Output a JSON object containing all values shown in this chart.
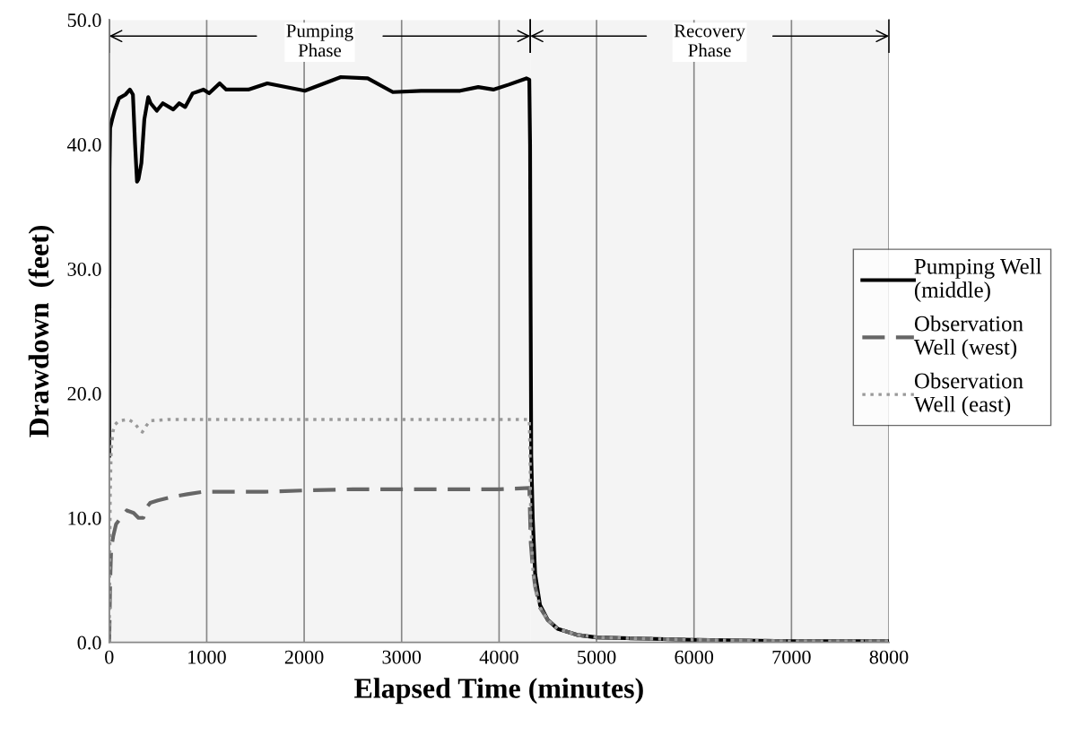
{
  "chart_data": {
    "type": "line",
    "xlabel": "Elapsed Time (minutes)",
    "ylabel": "Drawdown  (feet)",
    "xlim": [
      0,
      8000
    ],
    "ylim": [
      0,
      50
    ],
    "xticks": [
      0,
      1000,
      2000,
      3000,
      4000,
      5000,
      6000,
      7000,
      8000
    ],
    "yticks": [
      {
        "value": 0,
        "label": "0.0"
      },
      {
        "value": 10,
        "label": "10.0"
      },
      {
        "value": 20,
        "label": "20.0"
      },
      {
        "value": 30,
        "label": "30.0"
      },
      {
        "value": 40,
        "label": "40.0"
      },
      {
        "value": 50,
        "label": "50.0"
      }
    ],
    "grid": "x",
    "legend": "right",
    "bands": [
      {
        "axis": "x",
        "from": 0,
        "to": 4320,
        "label": "Pumping\nPhase",
        "color": "#f4f4f4"
      },
      {
        "axis": "x",
        "from": 4320,
        "to": 8000,
        "label": "Recovery\nPhase",
        "color": "#f4f4f4"
      }
    ],
    "series": [
      {
        "name": "Pumping Well\n(middle)",
        "color": "#000000",
        "line_style": "solid",
        "x": [
          0,
          3,
          9,
          30,
          55,
          100,
          166,
          212,
          243,
          265,
          285,
          300,
          330,
          360,
          400,
          425,
          488,
          550,
          657,
          718,
          779,
          856,
          967,
          1025,
          1133,
          1200,
          1427,
          1622,
          2007,
          2376,
          2652,
          2910,
          3200,
          3416,
          3600,
          3786,
          3941,
          4100,
          4280,
          4310,
          4318,
          4322,
          4330,
          4345,
          4370,
          4420,
          4500,
          4600,
          4800,
          5000,
          5500,
          6000,
          7000,
          8000
        ],
        "values": [
          15.0,
          38.0,
          41.3,
          42.0,
          42.7,
          43.7,
          44.0,
          44.4,
          44.0,
          40.0,
          37.0,
          37.2,
          38.5,
          42.0,
          43.8,
          43.3,
          42.7,
          43.3,
          42.8,
          43.3,
          43.0,
          44.1,
          44.4,
          44.1,
          44.9,
          44.4,
          44.4,
          44.9,
          44.3,
          45.4,
          45.3,
          44.2,
          44.3,
          44.3,
          44.3,
          44.6,
          44.4,
          44.8,
          45.3,
          45.2,
          40.0,
          30.0,
          15.0,
          10.0,
          5.5,
          3.0,
          1.8,
          1.1,
          0.6,
          0.4,
          0.3,
          0.2,
          0.1,
          0.1
        ]
      },
      {
        "name": "Observation\nWell (west)",
        "color": "#666666",
        "line_style": "dashed",
        "x": [
          0,
          10,
          20,
          40,
          70,
          120,
          180,
          250,
          300,
          350,
          380,
          420,
          500,
          650,
          800,
          967,
          1200,
          1600,
          2000,
          2500,
          3000,
          3500,
          4000,
          4310,
          4318,
          4325,
          4345,
          4370,
          4420,
          4500,
          4600,
          4800,
          5000,
          5500,
          6000,
          7000,
          8000
        ],
        "values": [
          0.0,
          5.0,
          7.5,
          8.5,
          9.5,
          10.0,
          10.6,
          10.4,
          10.0,
          10.0,
          10.8,
          11.2,
          11.4,
          11.7,
          11.9,
          12.1,
          12.1,
          12.1,
          12.2,
          12.3,
          12.3,
          12.3,
          12.3,
          12.4,
          10.0,
          8.0,
          6.0,
          4.5,
          2.8,
          1.8,
          1.1,
          0.6,
          0.4,
          0.3,
          0.2,
          0.1,
          0.1
        ]
      },
      {
        "name": "Observation\nWell (east)",
        "color": "#9a9a9a",
        "line_style": "dotted",
        "x": [
          0,
          10,
          20,
          40,
          60,
          100,
          200,
          260,
          300,
          340,
          380,
          420,
          600,
          1000,
          2000,
          3000,
          4000,
          4310,
          4318,
          4325,
          4345,
          4370,
          4420,
          4500,
          4600,
          4800,
          5000,
          5500,
          6000,
          7000,
          8000
        ],
        "values": [
          0.0,
          12.0,
          15.5,
          17.0,
          17.5,
          17.8,
          17.9,
          17.6,
          17.2,
          16.9,
          17.4,
          17.8,
          17.9,
          17.9,
          17.9,
          17.9,
          17.9,
          17.9,
          15.0,
          10.0,
          6.0,
          4.5,
          2.8,
          1.8,
          1.1,
          0.6,
          0.4,
          0.3,
          0.2,
          0.1,
          0.1
        ]
      }
    ]
  }
}
